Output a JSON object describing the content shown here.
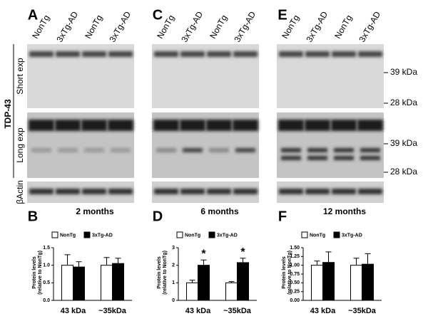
{
  "blots": {
    "panels": [
      {
        "letter": "A",
        "lanes": [
          "NonTg",
          "3xTg-AD",
          "NonTg",
          "3xTg-AD"
        ]
      },
      {
        "letter": "C",
        "lanes": [
          "NonTg",
          "3xTg-AD",
          "NonTg",
          "3xTg-AD"
        ]
      },
      {
        "letter": "E",
        "lanes": [
          "NonTg",
          "3xTg-AD",
          "NonTg",
          "3xTg-AD"
        ]
      }
    ],
    "side_labels": {
      "protein": "TDP-43",
      "short": "Short exp",
      "long": "Long exp",
      "actin": "βActin"
    },
    "markers": {
      "short": [
        "39 kDa",
        "28 kDa"
      ],
      "long": [
        "39 kDa",
        "28 kDa"
      ]
    }
  },
  "chart_data": [
    {
      "type": "bar",
      "letter": "B",
      "title": "2 months",
      "ylabel": [
        "Protein levels",
        "(relative to NonTg)"
      ],
      "categories": [
        "43 kDa",
        "~35kDa"
      ],
      "series": [
        {
          "name": "NonTg",
          "color": "#ffffff",
          "values": [
            1.0,
            1.0
          ],
          "errors": [
            0.3,
            0.22
          ]
        },
        {
          "name": "3xTg-AD",
          "color": "#000000",
          "values": [
            0.95,
            1.05
          ],
          "errors": [
            0.15,
            0.15
          ]
        }
      ],
      "ylim": [
        0,
        1.5
      ],
      "yticks": [
        {
          "value": 0,
          "label": "0.0"
        },
        {
          "value": 0.5,
          "label": "0.5"
        },
        {
          "value": 1,
          "label": "1.0"
        },
        {
          "value": 1.5,
          "label": "1.5"
        }
      ]
    },
    {
      "type": "bar",
      "letter": "D",
      "title": "6 months",
      "ylabel": [
        "Protein levels",
        "(relative to NonTg)"
      ],
      "categories": [
        "43 kDa",
        "~35kDa"
      ],
      "series": [
        {
          "name": "NonTg",
          "color": "#ffffff",
          "values": [
            1.0,
            1.0
          ],
          "errors": [
            0.15,
            0.07
          ]
        },
        {
          "name": "3xTg-AD",
          "color": "#000000",
          "values": [
            2.0,
            2.15
          ],
          "errors": [
            0.3,
            0.25
          ],
          "significance": [
            "*",
            "*"
          ]
        }
      ],
      "ylim": [
        0,
        3
      ],
      "yticks": [
        0,
        1,
        2,
        3
      ]
    },
    {
      "type": "bar",
      "letter": "F",
      "title": "12 months",
      "ylabel": [
        "Protein levels",
        "(relative to NonTg)"
      ],
      "categories": [
        "43 kDa",
        "~35kDa"
      ],
      "series": [
        {
          "name": "NonTg",
          "color": "#ffffff",
          "values": [
            1.0,
            1.0
          ],
          "errors": [
            0.12,
            0.2
          ]
        },
        {
          "name": "3xTg-AD",
          "color": "#000000",
          "values": [
            1.08,
            1.03
          ],
          "errors": [
            0.3,
            0.3
          ]
        }
      ],
      "ylim": [
        0,
        1.5
      ],
      "yticks": [
        {
          "value": 0,
          "label": "0.00"
        },
        {
          "value": 0.25,
          "label": "0.25"
        },
        {
          "value": 0.5,
          "label": "0.50"
        },
        {
          "value": 0.75,
          "label": "0.75"
        },
        {
          "value": 1,
          "label": "1.00"
        },
        {
          "value": 1.25,
          "label": "1.25"
        },
        {
          "value": 1.5,
          "label": "1.50"
        }
      ]
    }
  ]
}
